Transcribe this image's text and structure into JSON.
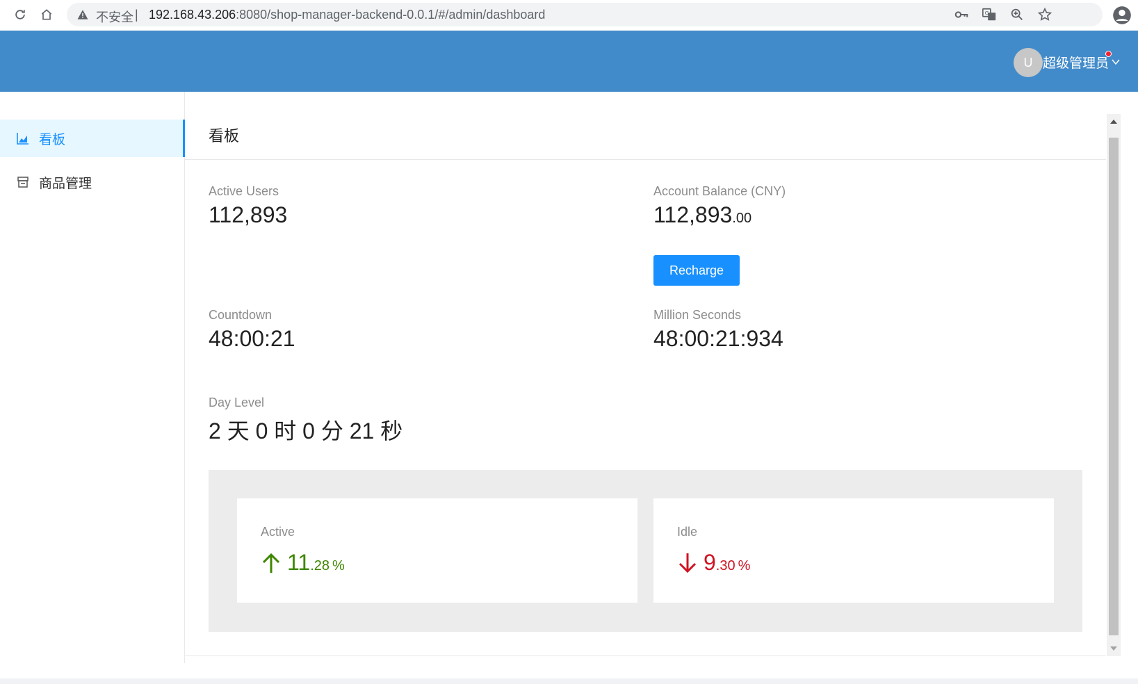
{
  "browser": {
    "security_label": "不安全",
    "url_host": "192.168.43.206",
    "url_rest": ":8080/shop-manager-backend-0.0.1/#/admin/dashboard",
    "icons": [
      "reload-icon",
      "home-icon",
      "warning-icon",
      "key-icon",
      "translate-icon",
      "zoom-icon",
      "star-icon",
      "profile-icon"
    ]
  },
  "header": {
    "avatar_initial": "U",
    "username": "超级管理员",
    "bg_color": "#428bca"
  },
  "sidebar": {
    "items": [
      {
        "label": "看板",
        "icon": "area-chart-icon",
        "active": true
      },
      {
        "label": "商品管理",
        "icon": "shop-icon",
        "active": false
      }
    ]
  },
  "main": {
    "title": "看板",
    "stats": {
      "active_users": {
        "label": "Active Users",
        "value": "112,893"
      },
      "account_balance": {
        "label": "Account Balance (CNY)",
        "value": "112,893",
        "decimal": ".00"
      },
      "recharge_button": "Recharge",
      "countdown": {
        "label": "Countdown",
        "value": "48:00:21"
      },
      "million_seconds": {
        "label": "Million Seconds",
        "value": "48:00:21:934"
      },
      "day_level": {
        "label": "Day Level",
        "value": "2 天 0 时 0 分 21 秒"
      }
    },
    "cards": {
      "active": {
        "label": "Active",
        "integer": "11",
        "decimal": ".28",
        "unit": "%",
        "direction": "up",
        "color": "#3f8600"
      },
      "idle": {
        "label": "Idle",
        "integer": "9",
        "decimal": ".30",
        "unit": "%",
        "direction": "down",
        "color": "#cf1322"
      }
    }
  },
  "colors": {
    "primary": "#1890ff",
    "sidebar_active_bg": "#e6f7ff",
    "panel_bg": "#ececec"
  }
}
